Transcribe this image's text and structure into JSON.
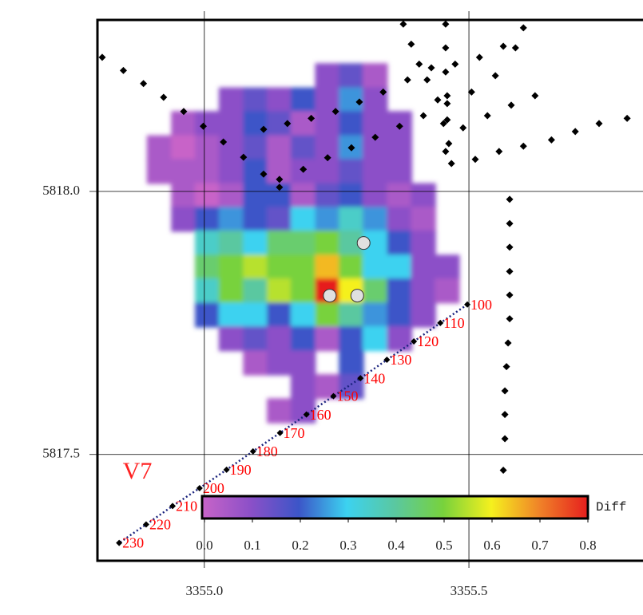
{
  "chart_data": {
    "type": "heatmap",
    "annotation": "V7",
    "xlim": [
      3354.798,
      3355.829
    ],
    "ylim": [
      5817.298,
      5818.326
    ],
    "xticks": [
      {
        "value": 3355,
        "label": "3355.0"
      },
      3355.5
    ],
    "yticks": [
      {
        "value": 5818,
        "label": "5818.0"
      },
      {
        "value": 5817.5,
        "label": "5817.5"
      }
    ],
    "grid": true,
    "x": [
      3354.915,
      3354.961,
      3355.006,
      3355.051,
      3355.097,
      3355.142,
      3355.187,
      3355.233,
      3355.278,
      3355.323,
      3355.369,
      3355.414,
      3355.459
    ],
    "y": [
      5818.22,
      5818.174,
      5818.129,
      5818.083,
      5818.038,
      5817.992,
      5817.947,
      5817.902,
      5817.856,
      5817.811,
      5817.765,
      5817.72,
      5817.674,
      5817.629,
      5817.583
    ],
    "z": [
      [
        null,
        null,
        null,
        null,
        null,
        null,
        null,
        0.1,
        0.15,
        0.05,
        null,
        null,
        null
      ],
      [
        null,
        null,
        null,
        0.1,
        0.15,
        0.1,
        0.2,
        0.1,
        0.25,
        0.1,
        null,
        null,
        null
      ],
      [
        null,
        0.05,
        0.1,
        0.1,
        0.2,
        0.15,
        0.05,
        0.1,
        0.2,
        0.1,
        0.1,
        null,
        null
      ],
      [
        0.05,
        0.0,
        0.05,
        0.1,
        0.15,
        0.05,
        0.15,
        0.1,
        0.25,
        0.1,
        0.1,
        null,
        null
      ],
      [
        0.05,
        0.05,
        0.05,
        0.1,
        0.2,
        0.05,
        0.1,
        0.1,
        0.15,
        0.1,
        0.1,
        null,
        null
      ],
      [
        null,
        0.05,
        0.0,
        0.05,
        0.2,
        0.2,
        0.05,
        0.15,
        0.2,
        0.1,
        0.05,
        0.1,
        null
      ],
      [
        null,
        0.1,
        0.2,
        0.25,
        0.2,
        0.15,
        0.3,
        0.25,
        0.35,
        0.25,
        0.1,
        0.05,
        null
      ],
      [
        null,
        null,
        0.35,
        0.4,
        0.3,
        0.45,
        0.45,
        0.5,
        0.4,
        0.3,
        0.2,
        0.1,
        null
      ],
      [
        null,
        null,
        0.45,
        0.5,
        0.55,
        0.5,
        0.5,
        0.65,
        0.5,
        0.3,
        0.3,
        0.1,
        0.1
      ],
      [
        null,
        null,
        0.35,
        0.5,
        0.4,
        0.55,
        0.5,
        0.8,
        0.6,
        0.45,
        0.2,
        0.1,
        0.05
      ],
      [
        null,
        null,
        0.2,
        0.3,
        0.3,
        0.2,
        0.3,
        0.5,
        0.4,
        0.25,
        0.2,
        0.1,
        null
      ],
      [
        null,
        null,
        null,
        0.1,
        0.15,
        0.1,
        0.2,
        0.05,
        0.2,
        0.3,
        0.1,
        null,
        null
      ],
      [
        null,
        null,
        null,
        null,
        0.05,
        0.1,
        0.1,
        null,
        0.2,
        null,
        null,
        null,
        null
      ],
      [
        null,
        null,
        null,
        null,
        null,
        null,
        0.1,
        0.05,
        0.15,
        null,
        null,
        null,
        null
      ],
      [
        null,
        null,
        null,
        null,
        null,
        0.05,
        0.1,
        null,
        null,
        null,
        null,
        null,
        null
      ]
    ],
    "colorbar": {
      "label": "Diff",
      "clim": [
        0,
        0.8
      ],
      "ticks": [
        {
          "value": 0,
          "label": "0.0"
        },
        0.1,
        0.2,
        0.3,
        0.4,
        0.5,
        0.6,
        0.7,
        0.8
      ],
      "colors": [
        "#c864c8",
        "#8c50c8",
        "#3c55c8",
        "#3cd2f0",
        "#5ac8a0",
        "#78d23c",
        "#f5f01e",
        "#f08228",
        "#e61e1e"
      ]
    },
    "track_color": "#000000",
    "tracks": [
      {
        "x": [
          3355.112,
          3355.157,
          3355.202,
          3355.248,
          3355.293,
          3355.338,
          3355.384,
          3355.429,
          3355.474,
          3355.52,
          3355.565,
          3355.603
        ],
        "y": [
          5818.118,
          5818.129,
          5818.139,
          5818.152,
          5818.17,
          5818.189,
          5818.212,
          5818.235,
          5818.242,
          5818.255,
          5818.276,
          5818.311
        ]
      },
      {
        "x": [
          3354.807,
          3354.847,
          3354.885,
          3354.923,
          3354.961,
          3354.998,
          3355.036,
          3355.074,
          3355.112,
          3355.142
        ],
        "y": [
          5818.255,
          5818.23,
          5818.205,
          5818.179,
          5818.152,
          5818.124,
          5818.094,
          5818.065,
          5818.033,
          5818.008
        ]
      },
      {
        "x": [
          3355.142,
          3355.187,
          3355.233,
          3355.278,
          3355.323,
          3355.369,
          3355.414,
          3355.459,
          3355.505,
          3355.55,
          3355.588
        ],
        "y": [
          5818.023,
          5818.042,
          5818.064,
          5818.083,
          5818.103,
          5818.124,
          5818.144,
          5818.167,
          5818.189,
          5818.22,
          5818.273
        ]
      },
      {
        "x": [
          3355.456,
          3355.456,
          3355.456,
          3355.459,
          3355.459,
          3355.462,
          3355.467
        ],
        "y": [
          5818.318,
          5818.273,
          5818.227,
          5818.182,
          5818.136,
          5818.091,
          5818.053
        ]
      },
      {
        "x": [
          3355.376,
          3355.391,
          3355.406,
          3355.421,
          3355.441,
          3355.452,
          3355.456
        ],
        "y": [
          5818.318,
          5818.28,
          5818.242,
          5818.212,
          5818.174,
          5818.129,
          5818.076
        ]
      },
      {
        "x": [
          3355.512,
          3355.557,
          3355.603,
          3355.656,
          3355.701,
          3355.746,
          3355.799
        ],
        "y": [
          5818.061,
          5818.076,
          5818.086,
          5818.098,
          5818.114,
          5818.129,
          5818.139
        ]
      },
      {
        "x": [
          3355.489,
          3355.535,
          3355.58,
          3355.625
        ],
        "y": [
          5818.121,
          5818.144,
          5818.164,
          5818.182
        ]
      },
      {
        "x": [
          3355.577,
          3355.577,
          3355.577,
          3355.577,
          3355.577,
          3355.577,
          3355.574,
          3355.571,
          3355.568,
          3355.568,
          3355.568,
          3355.565
        ],
        "y": [
          5817.985,
          5817.939,
          5817.894,
          5817.848,
          5817.803,
          5817.758,
          5817.712,
          5817.667,
          5817.621,
          5817.576,
          5817.53,
          5817.47
        ]
      }
    ],
    "profile": {
      "color": "#1a237e",
      "label_color": "#ff0000",
      "labels": [
        100,
        110,
        120,
        130,
        140,
        150,
        160,
        170,
        180,
        190,
        200,
        210,
        220,
        230
      ],
      "x": [
        3355.497,
        3355.446,
        3355.396,
        3355.345,
        3355.295,
        3355.244,
        3355.193,
        3355.143,
        3355.092,
        3355.042,
        3354.991,
        3354.94,
        3354.89,
        3354.839
      ],
      "y": [
        5817.785,
        5817.75,
        5817.715,
        5817.68,
        5817.645,
        5817.611,
        5817.576,
        5817.541,
        5817.506,
        5817.471,
        5817.436,
        5817.402,
        5817.367,
        5817.332
      ]
    },
    "sites": {
      "color": "#e0e0e0",
      "x": [
        3355.301,
        3355.237,
        3355.289
      ],
      "y": [
        5817.902,
        5817.802,
        5817.802
      ]
    }
  }
}
